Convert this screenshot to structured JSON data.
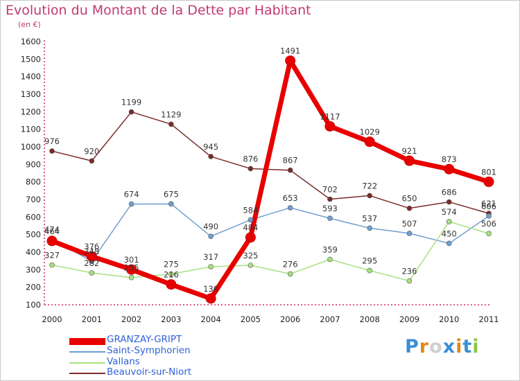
{
  "chart_data": {
    "type": "line",
    "title": "Evolution du Montant de la Dette par Habitant",
    "subtitle": "(en €)",
    "xlabel": "",
    "ylabel": "",
    "categories": [
      "2000",
      "2001",
      "2002",
      "2003",
      "2004",
      "2005",
      "2006",
      "2007",
      "2008",
      "2009",
      "2010",
      "2011"
    ],
    "ylim": [
      100,
      1600
    ],
    "yticks": [
      "100",
      "200",
      "300",
      "400",
      "500",
      "600",
      "700",
      "800",
      "900",
      "1000",
      "1100",
      "1200",
      "1300",
      "1400",
      "1500",
      "1600"
    ],
    "grid": false,
    "legend_position": "bottom-left",
    "series": [
      {
        "name": "GRANZAY-GRIPT",
        "color": "#e80000",
        "values": [
          464,
          376,
          301,
          216,
          136,
          484,
          1491,
          1117,
          1029,
          921,
          873,
          801
        ],
        "labels": [
          "464",
          "376",
          "301",
          "216",
          "136",
          "484",
          "1491",
          "1117",
          "1029",
          "921",
          "873",
          "801"
        ]
      },
      {
        "name": "Saint-Symphorien",
        "color": "#6fa0d0",
        "values": [
          474,
          348,
          674,
          675,
          490,
          584,
          653,
          593,
          537,
          507,
          450,
          606
        ],
        "labels": [
          "474",
          "348",
          "674",
          "675",
          "490",
          "584",
          "653",
          "593",
          "537",
          "507",
          "450",
          "606"
        ]
      },
      {
        "name": "Vallans",
        "color": "#a8e080",
        "values": [
          327,
          282,
          255,
          275,
          317,
          325,
          276,
          359,
          295,
          236,
          574,
          506
        ],
        "labels": [
          "327",
          "282",
          "255",
          "275",
          "317",
          "325",
          "276",
          "359",
          "295",
          "236",
          "574",
          "506"
        ]
      },
      {
        "name": "Beauvoir-sur-Niort",
        "color": "#7a2a2a",
        "values": [
          976,
          920,
          1199,
          1129,
          945,
          876,
          867,
          702,
          722,
          650,
          686,
          621
        ],
        "labels": [
          "976",
          "920",
          "1199",
          "1129",
          "945",
          "876",
          "867",
          "702",
          "722",
          "650",
          "686",
          "621"
        ]
      }
    ]
  },
  "legend": [
    {
      "label": "GRANZAY-GRIPT",
      "color": "#e80000"
    },
    {
      "label": "Saint-Symphorien",
      "color": "#6fa0d0"
    },
    {
      "label": "Vallans",
      "color": "#a8e080"
    },
    {
      "label": "Beauvoir-sur-Niort",
      "color": "#7a2a2a"
    }
  ],
  "brand": {
    "text": "Proxiti",
    "letter_colors": [
      "#3a8fd6",
      "#e08a1a",
      "#d0d0d0",
      "#3a8fd6",
      "#e08a1a",
      "#3a8fd6",
      "#8cc63f"
    ]
  }
}
